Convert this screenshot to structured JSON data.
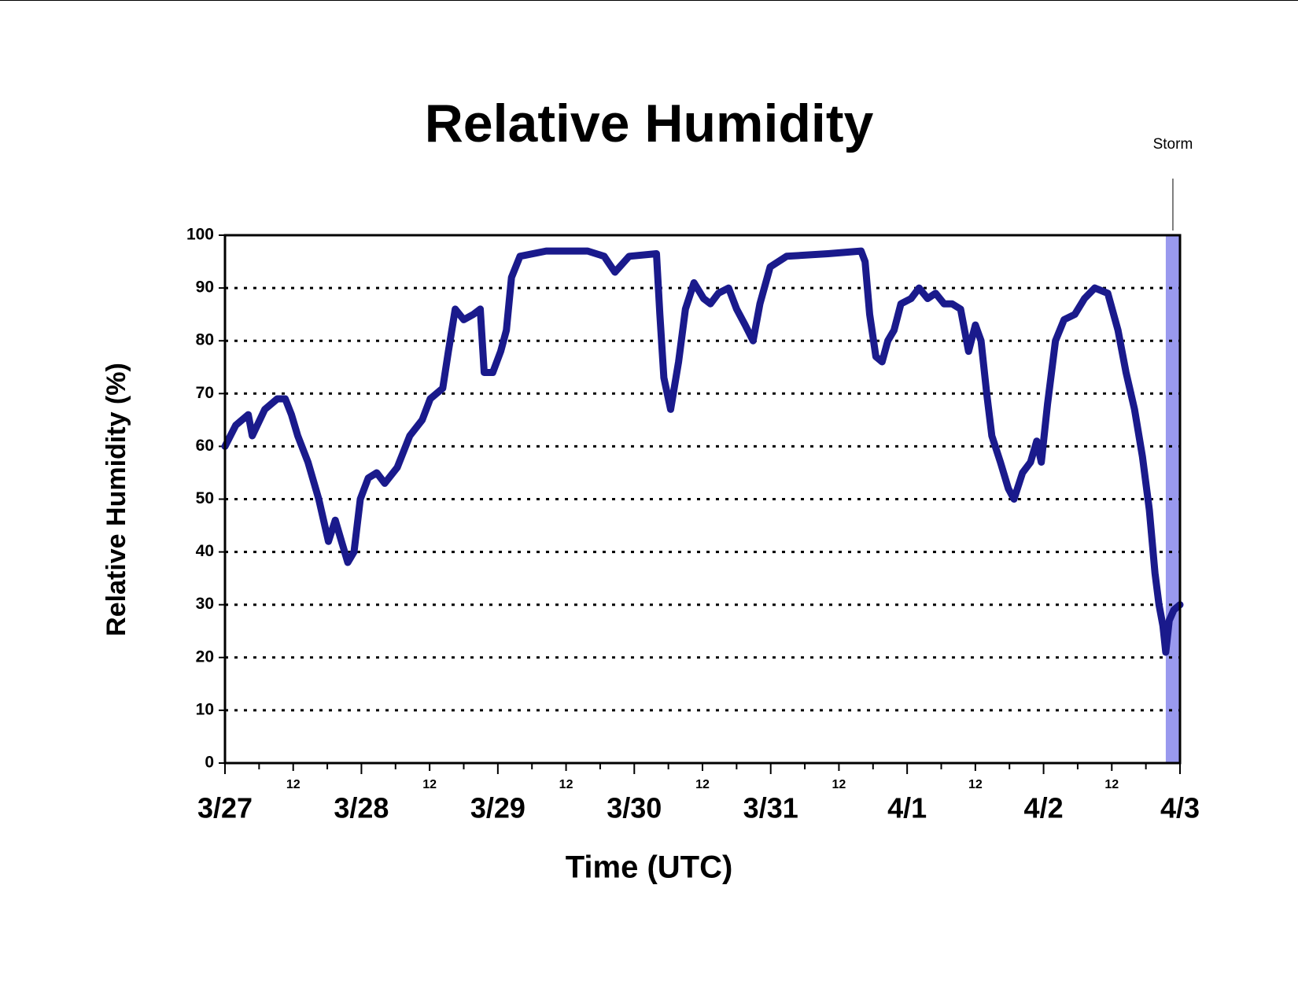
{
  "chart_data": {
    "type": "line",
    "title": "Relative Humidity",
    "xlabel": "Time (UTC)",
    "ylabel": "Relative Humidity (%)",
    "xlim": [
      0,
      168
    ],
    "xticks": [
      {
        "value": 0,
        "label": "3/27"
      },
      {
        "value": 12,
        "label": "12"
      },
      {
        "value": 24,
        "label": "3/28"
      },
      {
        "value": 36,
        "label": "12"
      },
      {
        "value": 48,
        "label": "3/29"
      },
      {
        "value": 60,
        "label": "12"
      },
      {
        "value": 72,
        "label": "3/30"
      },
      {
        "value": 84,
        "label": "12"
      },
      {
        "value": 96,
        "label": "3/31"
      },
      {
        "value": 108,
        "label": "12"
      },
      {
        "value": 120,
        "label": "4/1"
      },
      {
        "value": 132,
        "label": "12"
      },
      {
        "value": 144,
        "label": "4/2"
      },
      {
        "value": 156,
        "label": "12"
      },
      {
        "value": 168,
        "label": "4/3"
      }
    ],
    "xminorticks": [
      6,
      18,
      30,
      42,
      54,
      66,
      78,
      90,
      102,
      114,
      126,
      138,
      150,
      162
    ],
    "ylim": [
      0,
      100
    ],
    "yticks": [
      0,
      10,
      20,
      30,
      40,
      50,
      60,
      70,
      80,
      90,
      100
    ],
    "grid": true,
    "storm": {
      "label": "Storm",
      "span": [
        165.5,
        168
      ],
      "color": "#9999ee"
    },
    "series": [
      {
        "name": "Relative Humidity",
        "color": "#1a1a8c",
        "x": [
          0,
          1.9,
          4.1,
          4.8,
          7,
          9.2,
          10.6,
          11.7,
          12.8,
          14.6,
          16.5,
          18.2,
          19.4,
          20.5,
          21.6,
          22.7,
          23.8,
          25.2,
          26.7,
          28.1,
          30.3,
          32.5,
          34.7,
          36.1,
          38.3,
          39.3,
          40.5,
          42,
          43.7,
          44.9,
          45.6,
          47.1,
          48.5,
          49.5,
          50.4,
          51.9,
          56.5,
          63.8,
          66.7,
          68.6,
          71.1,
          75.9,
          76.5,
          77.2,
          78.4,
          79.8,
          81,
          82.5,
          84.2,
          85.4,
          86.8,
          88.6,
          90,
          91.5,
          92.9,
          94.1,
          95.9,
          98.8,
          106.1,
          111.9,
          112.6,
          113.4,
          114.5,
          115.6,
          116.6,
          117.7,
          118.9,
          120.7,
          122.1,
          123.6,
          125,
          126.5,
          127.9,
          129.4,
          130.8,
          132,
          133,
          134,
          134.9,
          136.4,
          137.8,
          138.8,
          140.3,
          141.7,
          142.8,
          143.6,
          144.7,
          146.1,
          147.6,
          149.5,
          151.2,
          153,
          155.3,
          157.1,
          158.5,
          160,
          161.4,
          162.6,
          163.6,
          164.3,
          165,
          165.5,
          166.1,
          166.9,
          168
        ],
        "values": [
          60,
          64,
          66,
          62,
          67,
          69,
          69,
          66,
          62,
          57,
          50,
          42,
          46,
          42,
          38,
          40,
          50,
          54,
          55,
          53,
          56,
          62,
          65,
          69,
          71,
          78,
          86,
          84,
          85,
          86,
          74,
          74,
          78,
          82,
          92,
          96,
          97,
          97,
          96,
          93,
          96,
          96.5,
          85,
          73,
          67,
          76,
          86,
          91,
          88,
          87,
          89,
          90,
          86,
          83,
          80,
          87,
          94,
          96,
          96.5,
          97,
          95,
          85,
          77,
          76,
          80,
          82,
          87,
          88,
          90,
          88,
          89,
          87,
          87,
          86,
          78,
          83,
          80,
          70,
          62,
          57,
          52,
          50,
          55,
          57,
          61,
          57,
          68,
          80,
          84,
          85,
          88,
          90,
          89,
          82,
          74,
          67,
          58,
          48,
          36,
          30,
          26,
          21,
          27,
          29,
          30
        ]
      }
    ]
  }
}
